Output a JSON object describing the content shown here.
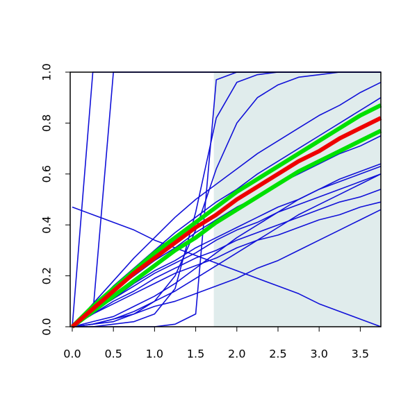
{
  "chart_data": {
    "type": "line",
    "x": [
      0,
      0.25,
      0.5,
      0.75,
      1,
      1.25,
      1.5,
      1.75,
      2,
      2.25,
      2.5,
      2.75,
      3,
      3.25,
      3.5,
      3.75
    ],
    "xlim": [
      -0.025,
      3.75
    ],
    "ylim": [
      0,
      1
    ],
    "xticks": [
      {
        "value": 0,
        "label": "0.0"
      },
      0.5,
      {
        "value": 1,
        "label": "1.0"
      },
      1.5,
      {
        "value": 2,
        "label": "2.0"
      },
      2.5,
      {
        "value": 3,
        "label": "3.0"
      },
      3.5
    ],
    "yticks": [
      {
        "value": 0,
        "label": "0.0"
      },
      0.2,
      0.4,
      0.6,
      0.8,
      {
        "value": 1,
        "label": "1.0"
      }
    ],
    "shade_from": 1.72,
    "shade_color": "#e0ecec",
    "series": [
      {
        "color": "#1010d8",
        "width": 1.6,
        "values": [
          0,
          1,
          1,
          1,
          1,
          1,
          1,
          1,
          1,
          1,
          1,
          1,
          1,
          1,
          1,
          1
        ]
      },
      {
        "color": "#1010d8",
        "width": 1.6,
        "values": [
          0,
          0.05,
          1,
          1,
          1,
          1,
          1,
          1,
          1,
          1,
          1,
          1,
          1,
          1,
          1,
          1
        ]
      },
      {
        "color": "#1010d8",
        "width": 1.6,
        "values": [
          0.47,
          0.44,
          0.41,
          0.38,
          0.34,
          0.31,
          0.28,
          0.25,
          0.22,
          0.19,
          0.16,
          0.13,
          0.09,
          0.06,
          0.03,
          0
        ]
      },
      {
        "color": "#1010d8",
        "width": 1.6,
        "values": [
          0,
          0,
          0,
          0,
          0,
          0.01,
          0.05,
          0.97,
          1,
          1,
          1,
          1,
          1,
          1,
          1,
          1
        ]
      },
      {
        "color": "#1010d8",
        "width": 1.6,
        "values": [
          0,
          0,
          0.01,
          0.02,
          0.05,
          0.15,
          0.45,
          0.82,
          0.96,
          0.99,
          1,
          1,
          1,
          1,
          1,
          1
        ]
      },
      {
        "color": "#1010d8",
        "width": 1.6,
        "values": [
          0,
          0.01,
          0.02,
          0.05,
          0.1,
          0.2,
          0.38,
          0.62,
          0.8,
          0.9,
          0.95,
          0.98,
          0.99,
          1,
          1,
          1
        ]
      },
      {
        "color": "#1010d8",
        "width": 1.6,
        "values": [
          0,
          0.09,
          0.18,
          0.27,
          0.35,
          0.43,
          0.5,
          0.56,
          0.62,
          0.68,
          0.73,
          0.78,
          0.83,
          0.87,
          0.92,
          0.96
        ]
      },
      {
        "color": "#1010d8",
        "width": 1.6,
        "values": [
          0,
          0.08,
          0.16,
          0.23,
          0.3,
          0.37,
          0.43,
          0.49,
          0.54,
          0.6,
          0.65,
          0.7,
          0.75,
          0.8,
          0.85,
          0.9
        ]
      },
      {
        "color": "#1010d8",
        "width": 1.6,
        "values": [
          0,
          0.07,
          0.14,
          0.2,
          0.26,
          0.31,
          0.37,
          0.42,
          0.47,
          0.51,
          0.56,
          0.6,
          0.64,
          0.68,
          0.71,
          0.75
        ]
      },
      {
        "color": "#1010d8",
        "width": 1.6,
        "values": [
          0,
          0.06,
          0.11,
          0.17,
          0.22,
          0.26,
          0.31,
          0.35,
          0.39,
          0.43,
          0.47,
          0.5,
          0.54,
          0.57,
          0.6,
          0.63
        ]
      },
      {
        "color": "#1010d8",
        "width": 1.6,
        "values": [
          0,
          0.06,
          0.11,
          0.16,
          0.21,
          0.25,
          0.29,
          0.34,
          0.38,
          0.41,
          0.45,
          0.48,
          0.51,
          0.54,
          0.57,
          0.6
        ]
      },
      {
        "color": "#1010d8",
        "width": 1.6,
        "values": [
          0,
          0.05,
          0.1,
          0.14,
          0.19,
          0.23,
          0.27,
          0.3,
          0.34,
          0.37,
          0.4,
          0.43,
          0.46,
          0.49,
          0.51,
          0.54
        ]
      },
      {
        "color": "#1010d8",
        "width": 1.6,
        "values": [
          0,
          0.05,
          0.09,
          0.13,
          0.17,
          0.21,
          0.24,
          0.27,
          0.31,
          0.34,
          0.36,
          0.39,
          0.42,
          0.44,
          0.47,
          0.49
        ]
      },
      {
        "color": "#1010d8",
        "width": 1.6,
        "values": [
          0,
          0.01,
          0.03,
          0.05,
          0.08,
          0.1,
          0.13,
          0.16,
          0.19,
          0.23,
          0.26,
          0.3,
          0.34,
          0.38,
          0.42,
          0.46
        ]
      },
      {
        "color": "#1010d8",
        "width": 1.6,
        "values": [
          0,
          0.01,
          0.03,
          0.06,
          0.1,
          0.14,
          0.19,
          0.24,
          0.29,
          0.34,
          0.39,
          0.44,
          0.48,
          0.52,
          0.56,
          0.6
        ]
      },
      {
        "color": "#1010d8",
        "width": 1.6,
        "values": [
          0,
          0.02,
          0.04,
          0.08,
          0.12,
          0.17,
          0.23,
          0.29,
          0.35,
          0.4,
          0.45,
          0.5,
          0.54,
          0.58,
          0.61,
          0.64
        ]
      },
      {
        "color": "#00e000",
        "width": 6,
        "values": [
          0,
          0.08,
          0.15,
          0.22,
          0.29,
          0.35,
          0.41,
          0.47,
          0.53,
          0.58,
          0.63,
          0.68,
          0.73,
          0.78,
          0.83,
          0.87
        ]
      },
      {
        "color": "#00e000",
        "width": 6,
        "values": [
          0,
          0.06,
          0.12,
          0.18,
          0.24,
          0.3,
          0.35,
          0.41,
          0.46,
          0.51,
          0.56,
          0.61,
          0.65,
          0.69,
          0.73,
          0.77
        ]
      },
      {
        "color": "#ee0000",
        "width": 6,
        "values": [
          0,
          0.07,
          0.14,
          0.21,
          0.27,
          0.33,
          0.39,
          0.44,
          0.5,
          0.55,
          0.6,
          0.65,
          0.69,
          0.74,
          0.78,
          0.82
        ]
      }
    ]
  }
}
